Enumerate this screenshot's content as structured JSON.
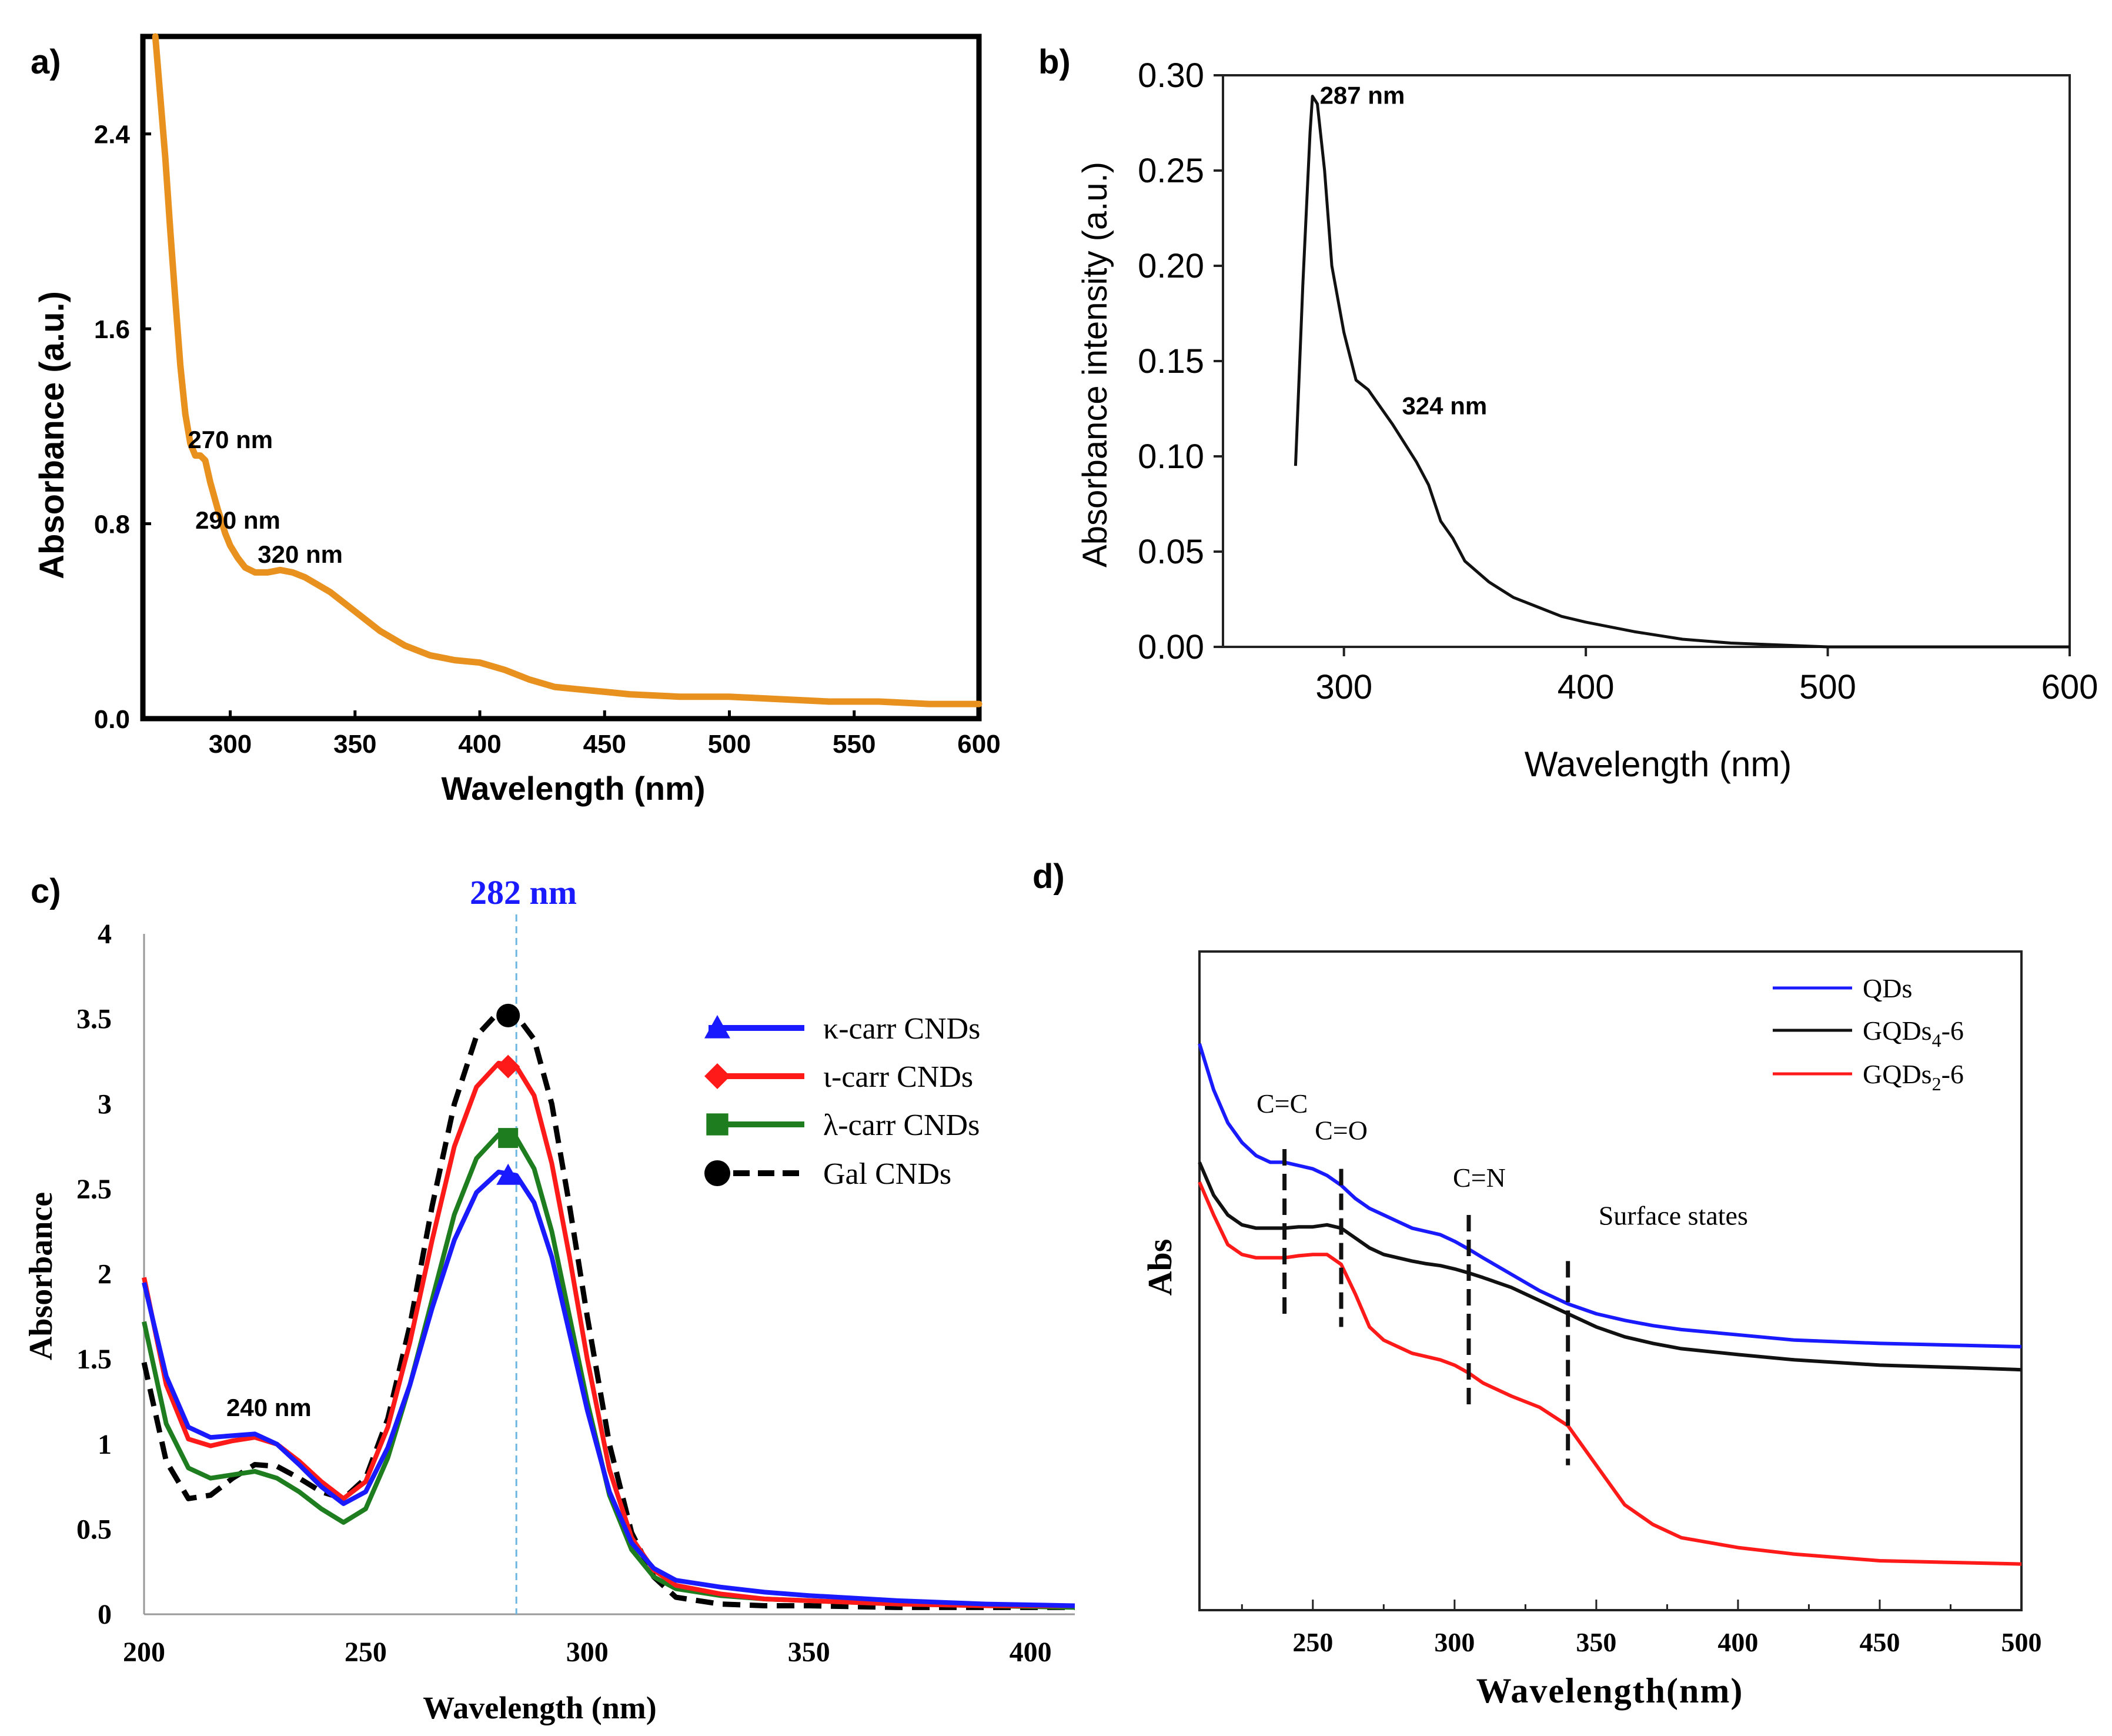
{
  "chart_data": [
    {
      "panel_label": "a)",
      "type": "line",
      "xlabel": "Wavelength (nm)",
      "ylabel": "Absorbance (a.u.)",
      "xlim": [
        265,
        600
      ],
      "ylim": [
        0,
        2.8
      ],
      "xticks": [
        "300",
        "350",
        "400",
        "450",
        "500",
        "550",
        "600"
      ],
      "yticks": [
        "0.0",
        "0.8",
        "1.6",
        "2.4"
      ],
      "color": "#e8911f",
      "series": [
        {
          "name": "absorbance",
          "x": [
            270,
            272,
            274,
            276,
            278,
            280,
            282,
            284,
            286,
            288,
            290,
            292,
            295,
            298,
            300,
            303,
            306,
            310,
            315,
            320,
            325,
            330,
            340,
            350,
            360,
            370,
            380,
            390,
            400,
            410,
            420,
            430,
            440,
            450,
            460,
            480,
            500,
            520,
            540,
            560,
            580,
            600
          ],
          "y": [
            2.8,
            2.55,
            2.3,
            2.0,
            1.72,
            1.45,
            1.25,
            1.13,
            1.08,
            1.08,
            1.06,
            0.97,
            0.86,
            0.76,
            0.71,
            0.66,
            0.62,
            0.6,
            0.6,
            0.61,
            0.6,
            0.58,
            0.52,
            0.44,
            0.36,
            0.3,
            0.26,
            0.24,
            0.23,
            0.2,
            0.16,
            0.13,
            0.12,
            0.11,
            0.1,
            0.09,
            0.09,
            0.08,
            0.07,
            0.07,
            0.06,
            0.06
          ]
        }
      ],
      "annotations": [
        {
          "text": "270 nm",
          "x": 283,
          "y": 1.11
        },
        {
          "text": "290 nm",
          "x": 286,
          "y": 0.78
        },
        {
          "text": "320 nm",
          "x": 311,
          "y": 0.64
        }
      ]
    },
    {
      "panel_label": "b)",
      "type": "line",
      "xlabel": "Wavelength (nm)",
      "ylabel": "Absorbance intensity (a.u.)",
      "xlim": [
        250,
        600
      ],
      "ylim": [
        0,
        0.3
      ],
      "xticks": [
        "300",
        "400",
        "500",
        "600"
      ],
      "yticks": [
        "0.00",
        "0.05",
        "0.10",
        "0.15",
        "0.20",
        "0.25",
        "0.30"
      ],
      "color": "#111111",
      "series": [
        {
          "name": "absorbance",
          "x": [
            280,
            283,
            286,
            287,
            289,
            292,
            295,
            300,
            305,
            310,
            320,
            330,
            335,
            340,
            345,
            350,
            360,
            370,
            380,
            390,
            400,
            420,
            440,
            460,
            480,
            500,
            550,
            600
          ],
          "y": [
            0.095,
            0.19,
            0.27,
            0.289,
            0.285,
            0.25,
            0.2,
            0.165,
            0.14,
            0.135,
            0.117,
            0.097,
            0.085,
            0.066,
            0.057,
            0.045,
            0.034,
            0.026,
            0.021,
            0.016,
            0.013,
            0.008,
            0.004,
            0.002,
            0.001,
            0.0,
            0.0,
            0.0
          ]
        }
      ],
      "annotations": [
        {
          "text": "287 nm",
          "x": 290,
          "y": 0.285
        },
        {
          "text": "324 nm",
          "x": 324,
          "y": 0.122
        }
      ]
    },
    {
      "panel_label": "c)",
      "type": "line",
      "xlabel": "Wavelength (nm)",
      "ylabel": "Absorbance",
      "xlim": [
        200,
        410
      ],
      "ylim": [
        0,
        4
      ],
      "xticks": [
        "200",
        "250",
        "300",
        "350",
        "400"
      ],
      "yticks": [
        "0",
        "0.5",
        "1",
        "1.5",
        "2",
        "2.5",
        "3",
        "3.5",
        "4"
      ],
      "peak_label": "282 nm",
      "peak_x": 284,
      "side_label": "240 nm",
      "x": [
        200,
        205,
        210,
        215,
        220,
        225,
        230,
        235,
        240,
        245,
        250,
        255,
        260,
        265,
        270,
        275,
        280,
        284,
        288,
        292,
        296,
        300,
        305,
        310,
        315,
        320,
        330,
        340,
        350,
        370,
        390,
        410
      ],
      "series": [
        {
          "name": "κ-carr CNDs",
          "color": "#1a1aff",
          "marker": "triangle",
          "dash": false,
          "peak": 2.58,
          "y": [
            1.95,
            1.4,
            1.1,
            1.04,
            1.05,
            1.06,
            1.0,
            0.88,
            0.75,
            0.65,
            0.72,
            0.98,
            1.35,
            1.8,
            2.2,
            2.48,
            2.6,
            2.58,
            2.42,
            2.1,
            1.65,
            1.2,
            0.72,
            0.42,
            0.27,
            0.2,
            0.16,
            0.13,
            0.11,
            0.08,
            0.06,
            0.05
          ]
        },
        {
          "name": "ι-carr CNDs",
          "color": "#ff1a1a",
          "marker": "diamond",
          "dash": false,
          "peak": 3.22,
          "y": [
            1.98,
            1.35,
            1.03,
            0.99,
            1.02,
            1.04,
            1.0,
            0.9,
            0.78,
            0.68,
            0.78,
            1.1,
            1.6,
            2.2,
            2.75,
            3.1,
            3.24,
            3.22,
            3.05,
            2.65,
            2.1,
            1.5,
            0.85,
            0.45,
            0.26,
            0.17,
            0.12,
            0.09,
            0.08,
            0.06,
            0.05,
            0.05
          ]
        },
        {
          "name": "λ-carr CNDs",
          "color": "#1e7d1e",
          "marker": "square",
          "dash": false,
          "peak": 2.8,
          "y": [
            1.72,
            1.12,
            0.86,
            0.8,
            0.82,
            0.84,
            0.8,
            0.72,
            0.62,
            0.54,
            0.62,
            0.92,
            1.35,
            1.85,
            2.35,
            2.68,
            2.82,
            2.8,
            2.62,
            2.25,
            1.75,
            1.25,
            0.7,
            0.38,
            0.22,
            0.15,
            0.11,
            0.09,
            0.08,
            0.06,
            0.05,
            0.04
          ]
        },
        {
          "name": "Gal CNDs",
          "color": "#000000",
          "marker": "circle",
          "dash": true,
          "peak": 3.52,
          "y": [
            1.48,
            0.9,
            0.68,
            0.7,
            0.8,
            0.88,
            0.87,
            0.8,
            0.72,
            0.68,
            0.8,
            1.15,
            1.7,
            2.4,
            3.0,
            3.4,
            3.54,
            3.52,
            3.38,
            3.0,
            2.4,
            1.75,
            1.0,
            0.48,
            0.22,
            0.1,
            0.06,
            0.05,
            0.05,
            0.04,
            0.04,
            0.04
          ]
        }
      ]
    },
    {
      "panel_label": "d)",
      "type": "line",
      "xlabel": "Wavelength(nm)",
      "ylabel": "Abs",
      "xlim": [
        210,
        500
      ],
      "ylim": [
        0,
        1
      ],
      "xticks": [
        "250",
        "300",
        "350",
        "400",
        "450",
        "500"
      ],
      "x": [
        210,
        215,
        220,
        225,
        230,
        235,
        240,
        245,
        250,
        255,
        260,
        265,
        270,
        275,
        280,
        285,
        290,
        295,
        300,
        305,
        310,
        320,
        330,
        340,
        350,
        360,
        370,
        380,
        400,
        420,
        450,
        480,
        500
      ],
      "series": [
        {
          "name": "QDs",
          "name_parts": [
            "QDs"
          ],
          "color": "#1a1aff",
          "y": [
            0.86,
            0.79,
            0.74,
            0.71,
            0.69,
            0.68,
            0.68,
            0.675,
            0.67,
            0.66,
            0.645,
            0.625,
            0.61,
            0.6,
            0.59,
            0.58,
            0.575,
            0.57,
            0.56,
            0.548,
            0.535,
            0.51,
            0.485,
            0.465,
            0.45,
            0.44,
            0.432,
            0.426,
            0.418,
            0.41,
            0.405,
            0.402,
            0.4
          ]
        },
        {
          "name": "GQDs4-6",
          "name_parts": [
            "GQDs",
            "4",
            "-6"
          ],
          "color": "#111111",
          "y": [
            0.68,
            0.63,
            0.6,
            0.585,
            0.58,
            0.58,
            0.58,
            0.582,
            0.582,
            0.585,
            0.58,
            0.565,
            0.55,
            0.54,
            0.535,
            0.53,
            0.526,
            0.523,
            0.518,
            0.512,
            0.505,
            0.49,
            0.47,
            0.45,
            0.43,
            0.415,
            0.405,
            0.397,
            0.388,
            0.38,
            0.372,
            0.368,
            0.365
          ]
        },
        {
          "name": "GQDs2-6",
          "name_parts": [
            "GQDs",
            "2",
            "-6"
          ],
          "color": "#ff1a1a",
          "y": [
            0.65,
            0.6,
            0.555,
            0.54,
            0.535,
            0.535,
            0.535,
            0.538,
            0.54,
            0.54,
            0.525,
            0.48,
            0.43,
            0.41,
            0.4,
            0.39,
            0.385,
            0.38,
            0.372,
            0.36,
            0.345,
            0.325,
            0.308,
            0.28,
            0.22,
            0.16,
            0.13,
            0.11,
            0.095,
            0.085,
            0.075,
            0.072,
            0.07
          ]
        }
      ],
      "markers": [
        {
          "label": "C=C",
          "x": 240,
          "y_top": 0.7,
          "y_bottom": 0.45
        },
        {
          "label": "C=O",
          "x": 260,
          "y_top": 0.67,
          "y_bottom": 0.43
        },
        {
          "label": "C=N",
          "x": 305,
          "y_top": 0.6,
          "y_bottom": 0.3
        },
        {
          "label": "Surface states",
          "x": 340,
          "y_top": 0.53,
          "y_bottom": 0.22
        }
      ]
    }
  ]
}
